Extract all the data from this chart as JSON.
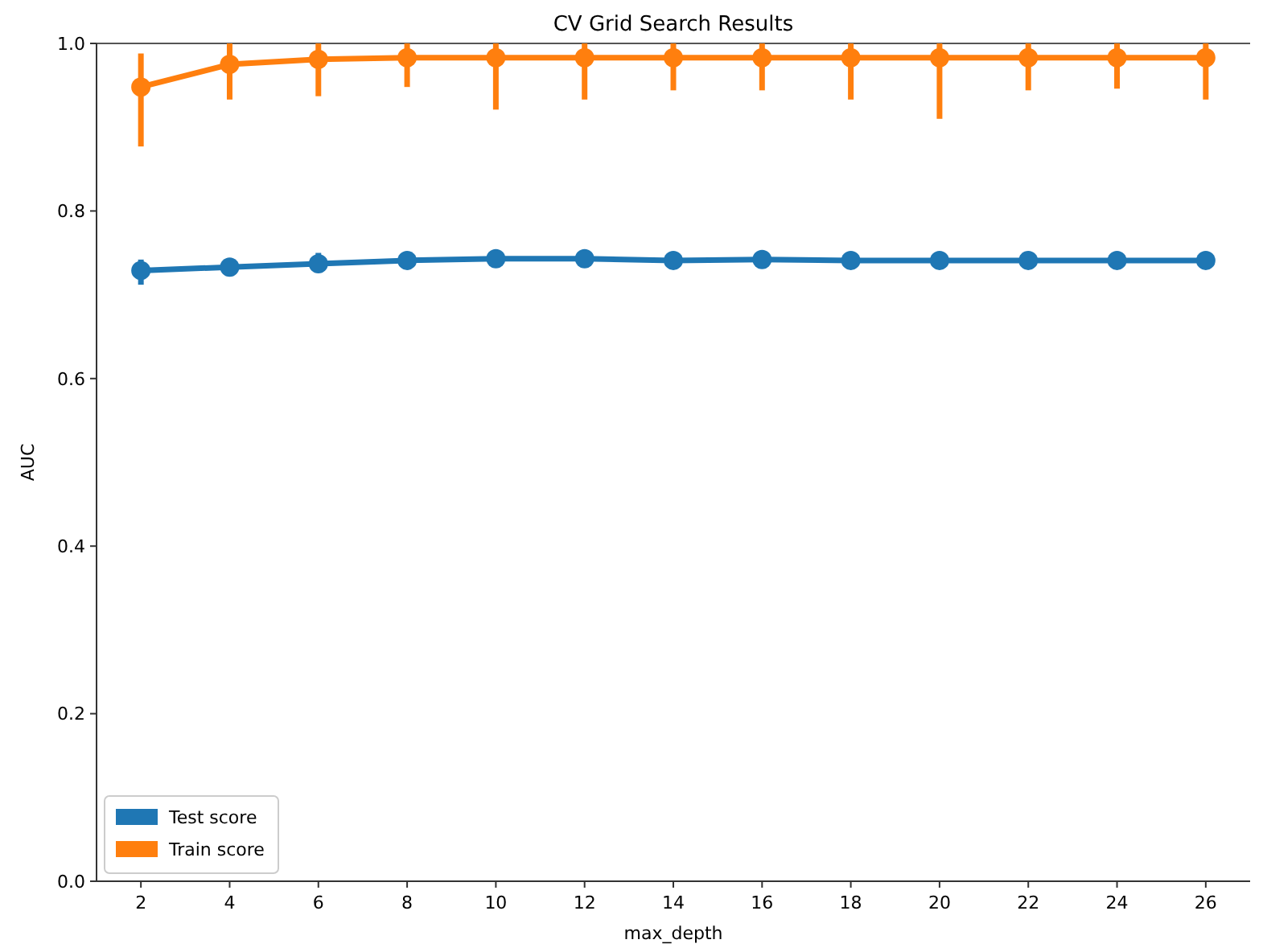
{
  "chart_data": {
    "type": "line",
    "title": "CV Grid Search Results",
    "xlabel": "max_depth",
    "ylabel": "AUC",
    "x": [
      2,
      4,
      6,
      8,
      10,
      12,
      14,
      16,
      18,
      20,
      22,
      24,
      26
    ],
    "xlim": [
      1,
      27
    ],
    "xticks": [
      2,
      4,
      6,
      8,
      10,
      12,
      14,
      16,
      18,
      20,
      22,
      24,
      26
    ],
    "ylim": [
      0,
      1
    ],
    "yticks": [
      {
        "value": 0,
        "label": "0.0"
      },
      {
        "value": 0.2,
        "label": "0.2"
      },
      {
        "value": 0.4,
        "label": "0.4"
      },
      {
        "value": 0.6,
        "label": "0.6"
      },
      {
        "value": 0.8,
        "label": "0.8"
      },
      {
        "value": 1,
        "label": "1.0"
      }
    ],
    "grid": false,
    "legend": "bottom left",
    "marker": "circle",
    "line_style": "solid",
    "series": [
      {
        "name": "Test score",
        "color": "#1f77b4",
        "values": [
          0.729,
          0.733,
          0.737,
          0.741,
          0.743,
          0.743,
          0.741,
          0.742,
          0.741,
          0.741,
          0.741,
          0.741,
          0.741
        ],
        "errors": [
          [
            0.712,
            0.742
          ],
          [
            0.723,
            0.743
          ],
          [
            0.727,
            0.75
          ],
          [
            0.733,
            0.749
          ],
          [
            0.736,
            0.75
          ],
          [
            0.735,
            0.751
          ],
          [
            0.733,
            0.749
          ],
          [
            0.735,
            0.749
          ],
          [
            0.734,
            0.748
          ],
          [
            0.735,
            0.747
          ],
          [
            0.734,
            0.748
          ],
          [
            0.733,
            0.749
          ],
          [
            0.733,
            0.749
          ]
        ]
      },
      {
        "name": "Train score",
        "color": "#ff7f0e",
        "values": [
          0.948,
          0.975,
          0.981,
          0.983,
          0.983,
          0.983,
          0.983,
          0.983,
          0.983,
          0.983,
          0.983,
          0.983,
          0.983
        ],
        "errors": [
          [
            0.877,
            0.988
          ],
          [
            0.933,
            1
          ],
          [
            0.937,
            1
          ],
          [
            0.948,
            1
          ],
          [
            0.921,
            1
          ],
          [
            0.933,
            1
          ],
          [
            0.944,
            1
          ],
          [
            0.944,
            1
          ],
          [
            0.933,
            1
          ],
          [
            0.91,
            1
          ],
          [
            0.944,
            1
          ],
          [
            0.946,
            1
          ],
          [
            0.933,
            1
          ]
        ]
      }
    ]
  }
}
